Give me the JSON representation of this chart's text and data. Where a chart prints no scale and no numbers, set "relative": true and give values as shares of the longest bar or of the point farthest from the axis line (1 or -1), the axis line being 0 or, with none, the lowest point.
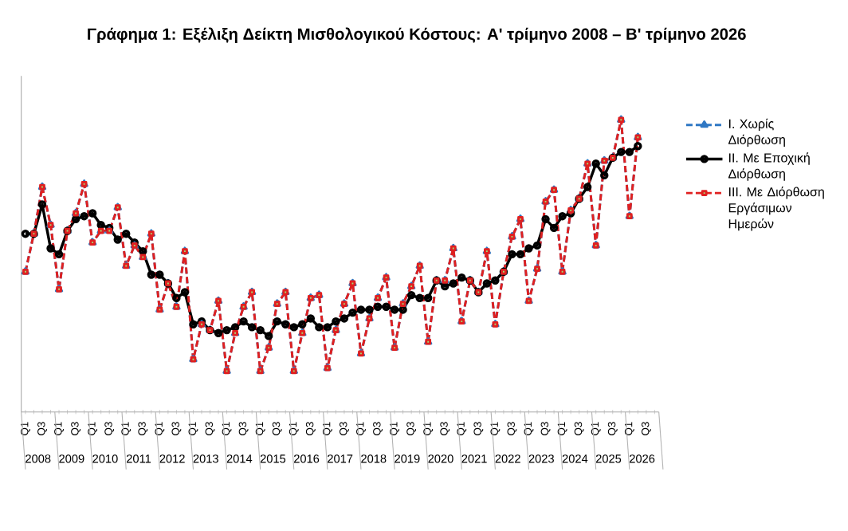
{
  "chart_data": {
    "type": "line",
    "title": "Γράφημα 1: Εξέλιξη Δείκτη Μισθολογικού Κόστους:  Α' τρίμηνο 2008 – Β' τρίμηνο 2026",
    "relative": true,
    "legend": "right",
    "categories": [
      "Q1",
      null,
      "Q3",
      null,
      "Q1",
      null,
      "Q3",
      null,
      "Q1",
      null,
      "Q3",
      null,
      "Q1",
      null,
      "Q3",
      null,
      "Q1",
      null,
      "Q3",
      null,
      "Q1",
      null,
      "Q3",
      null,
      "Q1",
      null,
      "Q3",
      null,
      "Q1",
      null,
      "Q3",
      null,
      "Q1",
      null,
      "Q3",
      null,
      "Q1",
      null,
      "Q3",
      null,
      "Q1",
      null,
      "Q3",
      null,
      "Q1",
      null,
      "Q3",
      null,
      "Q1",
      null,
      "Q3",
      null,
      "Q1",
      null,
      "Q3",
      null,
      "Q1",
      null,
      "Q3",
      null,
      "Q1",
      null,
      "Q3",
      null,
      "Q1",
      null,
      "Q3",
      null,
      "Q1",
      null,
      "Q3",
      null,
      "Q1",
      null,
      "Q3",
      null
    ],
    "annotations": [
      "2008",
      "2009",
      "2010",
      "2011",
      "2012",
      "2013",
      "2014",
      "2015",
      "2016",
      "2017",
      "2018",
      "2019",
      "2020",
      "2021",
      "2022",
      "2023",
      "2024",
      "2025",
      "2026"
    ],
    "series": [
      {
        "name": "I. Χωρίς Διόρθωση",
        "color": "#2f78c4",
        "marker": "triangle",
        "line_style": "dashed",
        "values": [
          0.48,
          0.61,
          0.77,
          0.64,
          0.42,
          0.62,
          0.68,
          0.78,
          0.58,
          0.62,
          0.62,
          0.7,
          0.5,
          0.57,
          0.53,
          0.61,
          0.35,
          0.44,
          0.36,
          0.55,
          0.18,
          0.3,
          0.28,
          0.38,
          0.14,
          0.27,
          0.36,
          0.41,
          0.14,
          0.22,
          0.37,
          0.41,
          0.14,
          0.27,
          0.39,
          0.4,
          0.15,
          0.28,
          0.37,
          0.44,
          0.2,
          0.32,
          0.39,
          0.46,
          0.22,
          0.37,
          0.43,
          0.5,
          0.24,
          0.45,
          0.45,
          0.56,
          0.31,
          0.45,
          0.41,
          0.55,
          0.3,
          0.48,
          0.6,
          0.66,
          0.38,
          0.49,
          0.72,
          0.76,
          0.48,
          0.69,
          0.73,
          0.85,
          0.57,
          0.86,
          0.87,
          1,
          0.67,
          0.94,
          null,
          null
        ]
      },
      {
        "name": "II. Με Εποχική Διόρθωση",
        "color": "#000000",
        "marker": "circle",
        "line_style": "solid",
        "values": [
          0.61,
          0.61,
          0.71,
          0.56,
          0.54,
          0.62,
          0.66,
          0.67,
          0.68,
          0.64,
          0.63,
          0.59,
          0.61,
          0.58,
          0.55,
          0.47,
          0.47,
          0.44,
          0.39,
          0.41,
          0.3,
          0.31,
          0.28,
          0.27,
          0.28,
          0.29,
          0.31,
          0.29,
          0.28,
          0.26,
          0.31,
          0.3,
          0.29,
          0.3,
          0.32,
          0.29,
          0.29,
          0.31,
          0.32,
          0.34,
          0.35,
          0.35,
          0.36,
          0.36,
          0.35,
          0.35,
          0.4,
          0.39,
          0.39,
          0.45,
          0.43,
          0.44,
          0.46,
          0.45,
          0.41,
          0.44,
          0.45,
          0.48,
          0.54,
          0.54,
          0.56,
          0.57,
          0.66,
          0.63,
          0.67,
          0.68,
          0.73,
          0.77,
          0.85,
          0.81,
          0.87,
          0.89,
          0.89,
          0.91,
          null,
          null
        ]
      },
      {
        "name": "III. Με Διόρθωση Εργάσιμων Ημερών",
        "color": "#e02020",
        "marker": "square",
        "line_style": "dashed",
        "values": [
          0.48,
          0.61,
          0.77,
          0.64,
          0.42,
          0.62,
          0.68,
          0.78,
          0.58,
          0.62,
          0.62,
          0.7,
          0.5,
          0.57,
          0.53,
          0.61,
          0.35,
          0.44,
          0.36,
          0.55,
          0.18,
          0.3,
          0.28,
          0.38,
          0.14,
          0.27,
          0.36,
          0.41,
          0.14,
          0.22,
          0.37,
          0.41,
          0.14,
          0.27,
          0.39,
          0.4,
          0.15,
          0.28,
          0.37,
          0.44,
          0.2,
          0.32,
          0.39,
          0.46,
          0.22,
          0.37,
          0.43,
          0.5,
          0.24,
          0.45,
          0.45,
          0.56,
          0.31,
          0.45,
          0.41,
          0.55,
          0.3,
          0.48,
          0.6,
          0.66,
          0.38,
          0.49,
          0.72,
          0.76,
          0.48,
          0.69,
          0.73,
          0.85,
          0.57,
          0.86,
          0.87,
          1,
          0.67,
          0.94,
          null,
          null
        ]
      }
    ]
  }
}
